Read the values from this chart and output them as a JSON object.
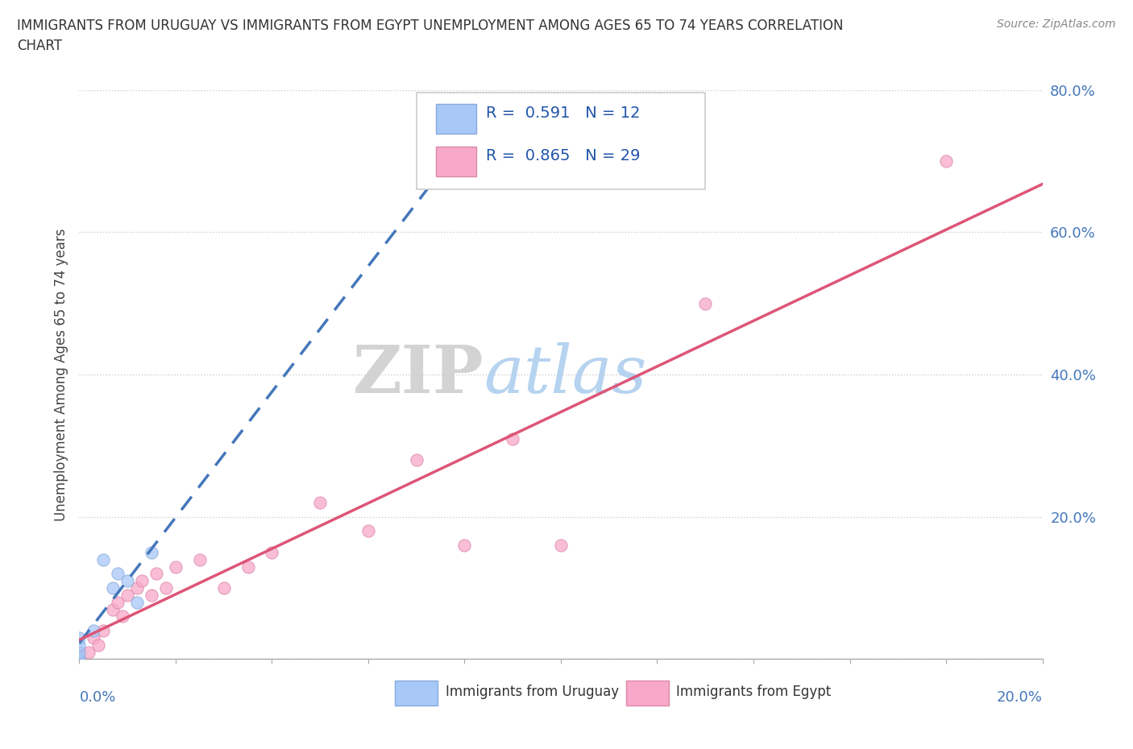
{
  "title_line1": "IMMIGRANTS FROM URUGUAY VS IMMIGRANTS FROM EGYPT UNEMPLOYMENT AMONG AGES 65 TO 74 YEARS CORRELATION",
  "title_line2": "CHART",
  "source": "Source: ZipAtlas.com",
  "ylabel": "Unemployment Among Ages 65 to 74 years",
  "xlim": [
    0.0,
    0.2
  ],
  "ylim": [
    0.0,
    0.8
  ],
  "yticks": [
    0.0,
    0.2,
    0.4,
    0.6,
    0.8
  ],
  "ytick_labels": [
    "",
    "20.0%",
    "40.0%",
    "60.0%",
    "80.0%"
  ],
  "uruguay_R": 0.591,
  "uruguay_N": 12,
  "egypt_R": 0.865,
  "egypt_N": 29,
  "uruguay_color": "#a8c8f8",
  "uruguay_edge_color": "#88aadd",
  "egypt_color": "#f8a8c8",
  "egypt_edge_color": "#dd88aa",
  "uruguay_line_color": "#4477bb",
  "egypt_line_color": "#dd5577",
  "watermark_zip": "ZIP",
  "watermark_atlas": "atlas",
  "watermark_zip_color": "#cccccc",
  "watermark_atlas_color": "#aaccee",
  "uruguay_x": [
    0.0,
    0.0,
    0.0,
    0.0,
    0.0,
    0.003,
    0.005,
    0.007,
    0.008,
    0.01,
    0.012,
    0.015
  ],
  "uruguay_y": [
    0.0,
    0.0,
    0.01,
    0.02,
    0.03,
    0.04,
    0.14,
    0.1,
    0.12,
    0.11,
    0.08,
    0.15
  ],
  "egypt_x": [
    0.0,
    0.0,
    0.0,
    0.002,
    0.003,
    0.004,
    0.005,
    0.007,
    0.008,
    0.009,
    0.01,
    0.012,
    0.013,
    0.015,
    0.016,
    0.018,
    0.02,
    0.025,
    0.03,
    0.035,
    0.04,
    0.05,
    0.06,
    0.07,
    0.08,
    0.09,
    0.1,
    0.13,
    0.18
  ],
  "egypt_y": [
    0.0,
    0.0,
    0.01,
    0.01,
    0.03,
    0.02,
    0.04,
    0.07,
    0.08,
    0.06,
    0.09,
    0.1,
    0.11,
    0.09,
    0.12,
    0.1,
    0.13,
    0.14,
    0.1,
    0.13,
    0.15,
    0.22,
    0.18,
    0.28,
    0.16,
    0.31,
    0.16,
    0.5,
    0.7
  ]
}
